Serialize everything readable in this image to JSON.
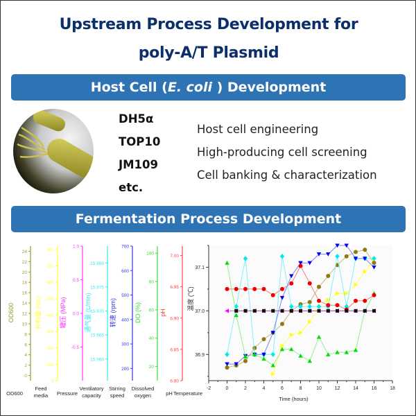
{
  "header": {
    "title_line1": "Upstream Process Development for",
    "title_line2": "poly-A/T Plasmid"
  },
  "host_section": {
    "banner_prefix": "Host Cell (",
    "banner_italic": "E. coli",
    "banner_suffix": " ) Development",
    "image_icon": "ecoli-bacterium-illustration",
    "strains": [
      "DH5α",
      "TOP10",
      "JM109",
      "etc."
    ],
    "capabilities": [
      "Host cell engineering",
      "High-producing cell screening",
      "Cell banking & characterization"
    ]
  },
  "fermentation_section": {
    "banner": "Fermentation Process Development"
  },
  "chart_data": [
    {
      "type": "multi-axis",
      "axes": [
        {
          "name": "OD600",
          "label": "OD600",
          "bottom_label": [
            "OD600"
          ],
          "color": "#9a9a30",
          "ticks": [
            0,
            2,
            4,
            6,
            8,
            10,
            12,
            14,
            16,
            18,
            20,
            22,
            24
          ],
          "range": [
            -1,
            25
          ]
        },
        {
          "name": "feed",
          "label": "补料量 (mL)",
          "bottom_label": [
            "Feed",
            "media"
          ],
          "color": "#ffff33",
          "ticks": [
            0,
            100,
            200,
            300,
            400,
            500,
            600,
            700,
            800
          ],
          "range": [
            0,
            820
          ]
        },
        {
          "name": "pressure",
          "label": "罐压 (MPa)",
          "bottom_label": [
            "Pressure"
          ],
          "color": "#ff33ff",
          "ticks": [
            "-0.5",
            "0.0",
            "0.5",
            "1.0"
          ],
          "range": [
            -1.0,
            1.0
          ]
        },
        {
          "name": "ventilation",
          "label": "通气量 (L/min)",
          "bottom_label": [
            "Ventilatory",
            "capacity"
          ],
          "color": "#33e8ee",
          "ticks": [
            "15.960",
            "15.965",
            "15.970",
            "15.975",
            "15.980"
          ],
          "range": [
            15.9555,
            15.9835
          ]
        },
        {
          "name": "stirring",
          "label": "转速 (rpm)",
          "bottom_label": [
            "Stirring",
            "speed"
          ],
          "color": "#3333ee",
          "ticks": [
            200,
            300,
            400,
            500,
            600,
            700
          ],
          "range": [
            150,
            700
          ]
        },
        {
          "name": "do",
          "label": "DO (%)",
          "bottom_label": [
            "Dissolved",
            "oxygen"
          ],
          "color": "#33dd33",
          "ticks": [
            20,
            40,
            60,
            80,
            100
          ],
          "range": [
            10,
            105
          ]
        },
        {
          "name": "ph",
          "label": "pH",
          "bottom_label": [
            "pH"
          ],
          "color": "#ff4444",
          "ticks": [
            "6.80",
            "6.85",
            "6.90",
            "6.95",
            "7.00"
          ],
          "range": [
            6.8,
            7.015
          ]
        },
        {
          "name": "temp",
          "label": "温度 (℃)",
          "bottom_label": [
            "Temperature"
          ],
          "color": "#333333",
          "ticks": [],
          "range": []
        }
      ]
    },
    {
      "type": "line",
      "xlabel": "Time (hours)",
      "xlim": [
        -2,
        18
      ],
      "xticks": [
        -2,
        0,
        2,
        4,
        6,
        8,
        10,
        12,
        14,
        16,
        18
      ],
      "ylim": [
        36.84,
        37.15
      ],
      "yticks": [
        "36.9",
        "37.0",
        "37.1"
      ],
      "x": [
        0,
        1,
        2,
        3,
        4,
        5,
        6,
        7,
        8,
        9,
        10,
        11,
        12,
        13,
        14,
        15,
        16
      ],
      "series": [
        {
          "name": "OD600",
          "color": "#8a7a10",
          "line": "#c8b878",
          "marker": "circle",
          "values": [
            36.87,
            36.875,
            36.885,
            36.915,
            36.935,
            36.95,
            36.97,
            37.0,
            37.015,
            37.02,
            37.055,
            37.08,
            37.105,
            37.125,
            37.135,
            37.14,
            37.11
          ]
        },
        {
          "name": "Feed media",
          "color": "#ffff00",
          "line": "#ffff60",
          "marker": "triangle-right",
          "values": [
            null,
            null,
            null,
            null,
            null,
            36.855,
            36.92,
            36.945,
            36.95,
            36.975,
            37.01,
            37.025,
            37.04,
            37.04,
            37.06,
            37.09,
            37.12
          ]
        },
        {
          "name": "Pressure",
          "color": "#ff00ff",
          "line": "#d070d0",
          "marker": "triangle-left",
          "values": [
            37.0,
            37.0,
            37.0,
            37.0,
            37.0,
            37.0,
            37.0,
            37.0,
            37.0,
            37.0,
            37.0,
            37.0,
            37.0,
            37.0,
            37.0,
            37.0,
            37.0
          ]
        },
        {
          "name": "Ventilatory capacity",
          "color": "#00e8f0",
          "line": "#80f0f8",
          "marker": "diamond",
          "values": [
            36.9,
            37.01,
            37.12,
            36.9,
            36.9,
            36.9,
            37.125,
            37.01,
            37.01,
            37.01,
            37.01,
            37.01,
            37.125,
            37.01,
            37.12,
            37.12,
            37.12
          ]
        },
        {
          "name": "Stirring speed",
          "color": "#0000ee",
          "line": "#8080ff",
          "marker": "triangle-down",
          "values": [
            36.878,
            36.878,
            36.897,
            36.9,
            36.9,
            36.95,
            37.03,
            37.08,
            37.11,
            37.11,
            37.13,
            37.13,
            37.15,
            37.15,
            37.12,
            37.12,
            37.1
          ]
        },
        {
          "name": "Dissolved oxygen",
          "color": "#00dd00",
          "line": "#90f090",
          "marker": "triangle-up",
          "values": [
            37.11,
            36.99,
            36.895,
            36.9,
            36.89,
            36.875,
            36.912,
            36.912,
            36.897,
            36.885,
            36.94,
            36.9,
            36.905,
            36.905,
            36.91,
            37.0,
            37.04
          ]
        },
        {
          "name": "pH",
          "color": "#ee0000",
          "line": "#f08080",
          "marker": "circle",
          "values": [
            37.05,
            37.05,
            37.05,
            37.05,
            37.05,
            37.036,
            37.05,
            37.063,
            37.103,
            37.063,
            37.023,
            37.013,
            37.013,
            37.003,
            37.023,
            37.023,
            37.036
          ]
        },
        {
          "name": "Temperature",
          "color": "#111111",
          "line": "#a060a0",
          "marker": "square",
          "values": [
            null,
            37.0,
            37.0,
            37.0,
            37.0,
            37.0,
            37.0,
            37.0,
            37.0,
            37.0,
            37.0,
            37.0,
            37.0,
            37.0,
            37.0,
            37.0,
            37.0
          ]
        }
      ]
    }
  ]
}
